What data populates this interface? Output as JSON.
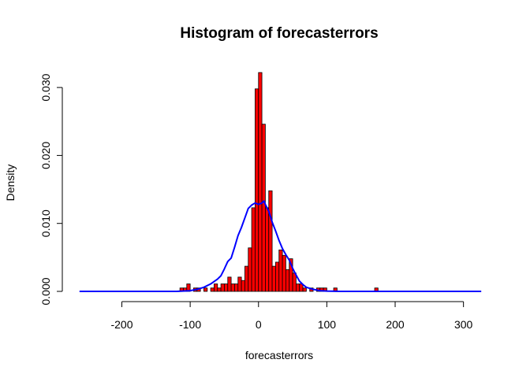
{
  "chart_data": {
    "type": "bar",
    "title": "Histogram of forecasterrors",
    "xlabel": "forecasterrors",
    "ylabel": "Density",
    "xlim": [
      -265,
      330
    ],
    "ylim": [
      0,
      0.033
    ],
    "x_ticks": [
      -200,
      -100,
      0,
      100,
      200,
      300
    ],
    "y_ticks": [
      0.0,
      0.01,
      0.02,
      0.03
    ],
    "x_tick_labels": [
      "-200",
      "-100",
      "0",
      "100",
      "200",
      "300"
    ],
    "y_tick_labels": [
      "0.000",
      "0.010",
      "0.020",
      "0.030"
    ],
    "grid": false,
    "colors": {
      "bars": "#ff0000",
      "bar_border": "#000000",
      "density": "#0000ff"
    },
    "series": [
      {
        "type": "histogram",
        "bin_width": 5,
        "bins": [
          {
            "start": -115,
            "end": -110,
            "density": 0.0005
          },
          {
            "start": -110,
            "end": -105,
            "density": 0.0005
          },
          {
            "start": -105,
            "end": -100,
            "density": 0.0011
          },
          {
            "start": -95,
            "end": -90,
            "density": 0.0005
          },
          {
            "start": -90,
            "end": -85,
            "density": 0.0005
          },
          {
            "start": -80,
            "end": -75,
            "density": 0.0005
          },
          {
            "start": -70,
            "end": -65,
            "density": 0.0005
          },
          {
            "start": -65,
            "end": -60,
            "density": 0.0011
          },
          {
            "start": -60,
            "end": -55,
            "density": 0.0005
          },
          {
            "start": -55,
            "end": -50,
            "density": 0.0011
          },
          {
            "start": -50,
            "end": -45,
            "density": 0.0011
          },
          {
            "start": -45,
            "end": -40,
            "density": 0.0021
          },
          {
            "start": -40,
            "end": -35,
            "density": 0.0011
          },
          {
            "start": -35,
            "end": -30,
            "density": 0.0011
          },
          {
            "start": -30,
            "end": -25,
            "density": 0.0021
          },
          {
            "start": -25,
            "end": -20,
            "density": 0.0016
          },
          {
            "start": -20,
            "end": -15,
            "density": 0.0037
          },
          {
            "start": -15,
            "end": -10,
            "density": 0.0064
          },
          {
            "start": -10,
            "end": -5,
            "density": 0.0123
          },
          {
            "start": -5,
            "end": 0,
            "density": 0.0298
          },
          {
            "start": 0,
            "end": 5,
            "density": 0.0322
          },
          {
            "start": 5,
            "end": 10,
            "density": 0.0246
          },
          {
            "start": 10,
            "end": 15,
            "density": 0.0123
          },
          {
            "start": 15,
            "end": 20,
            "density": 0.0148
          },
          {
            "start": 20,
            "end": 25,
            "density": 0.0037
          },
          {
            "start": 25,
            "end": 30,
            "density": 0.0043
          },
          {
            "start": 30,
            "end": 35,
            "density": 0.0061
          },
          {
            "start": 35,
            "end": 40,
            "density": 0.0053
          },
          {
            "start": 40,
            "end": 45,
            "density": 0.0032
          },
          {
            "start": 45,
            "end": 50,
            "density": 0.0048
          },
          {
            "start": 50,
            "end": 55,
            "density": 0.0027
          },
          {
            "start": 55,
            "end": 60,
            "density": 0.0011
          },
          {
            "start": 60,
            "end": 65,
            "density": 0.0011
          },
          {
            "start": 65,
            "end": 70,
            "density": 0.0005
          },
          {
            "start": 75,
            "end": 80,
            "density": 0.0005
          },
          {
            "start": 85,
            "end": 90,
            "density": 0.0005
          },
          {
            "start": 90,
            "end": 95,
            "density": 0.0005
          },
          {
            "start": 95,
            "end": 100,
            "density": 0.0005
          },
          {
            "start": 110,
            "end": 115,
            "density": 0.0005
          },
          {
            "start": 170,
            "end": 175,
            "density": 0.0005
          }
        ]
      },
      {
        "type": "line",
        "x": [
          -262,
          -120,
          -100,
          -90,
          -80,
          -70,
          -60,
          -55,
          -50,
          -45,
          -40,
          -35,
          -30,
          -25,
          -20,
          -15,
          -10,
          -5,
          0,
          5,
          8,
          10,
          15,
          20,
          25,
          30,
          35,
          40,
          45,
          50,
          55,
          60,
          65,
          70,
          80,
          90,
          100,
          120,
          180,
          326
        ],
        "y": [
          0,
          0,
          0.0001,
          0.0003,
          0.0006,
          0.0011,
          0.0018,
          0.0023,
          0.0033,
          0.0044,
          0.0049,
          0.0065,
          0.0082,
          0.0094,
          0.0108,
          0.0122,
          0.0127,
          0.013,
          0.0128,
          0.013,
          0.0133,
          0.0128,
          0.0118,
          0.0102,
          0.0089,
          0.0075,
          0.0063,
          0.0054,
          0.0046,
          0.0034,
          0.0024,
          0.0015,
          0.001,
          0.0006,
          0.0003,
          0.0001,
          5e-05,
          0,
          0,
          0
        ]
      }
    ]
  }
}
